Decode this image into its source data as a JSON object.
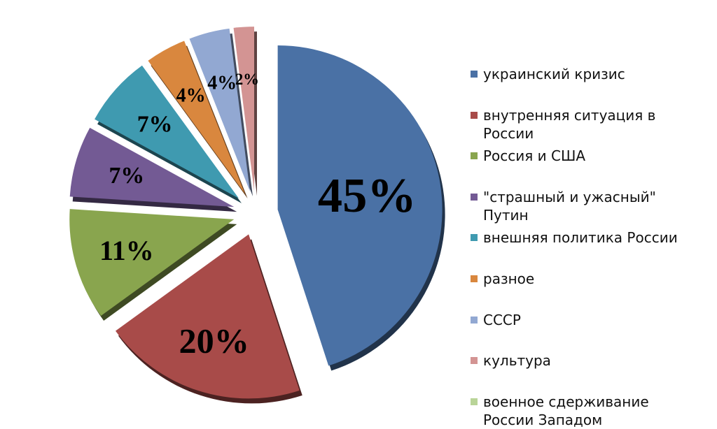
{
  "chart_data": {
    "type": "pie",
    "categories": [
      "украинский кризис",
      "внутренняя ситуация в России",
      "Россия и США",
      "\"страшный и ужасный\" Путин",
      "внешняя политика России",
      "разное",
      "СССР",
      "культура",
      "военное сдерживание России Западом"
    ],
    "values": [
      45,
      20,
      11,
      7,
      7,
      4,
      4,
      2,
      0
    ],
    "value_labels": [
      "45%",
      "20%",
      "11%",
      "7%",
      "7%",
      "4%",
      "4%",
      "2%",
      null
    ],
    "colors": [
      "#4a71a5",
      "#a84b49",
      "#89a54e",
      "#735a94",
      "#3f9ab0",
      "#d9873e",
      "#92a8d2",
      "#d39493",
      "#b9d498"
    ],
    "legend": "right"
  }
}
